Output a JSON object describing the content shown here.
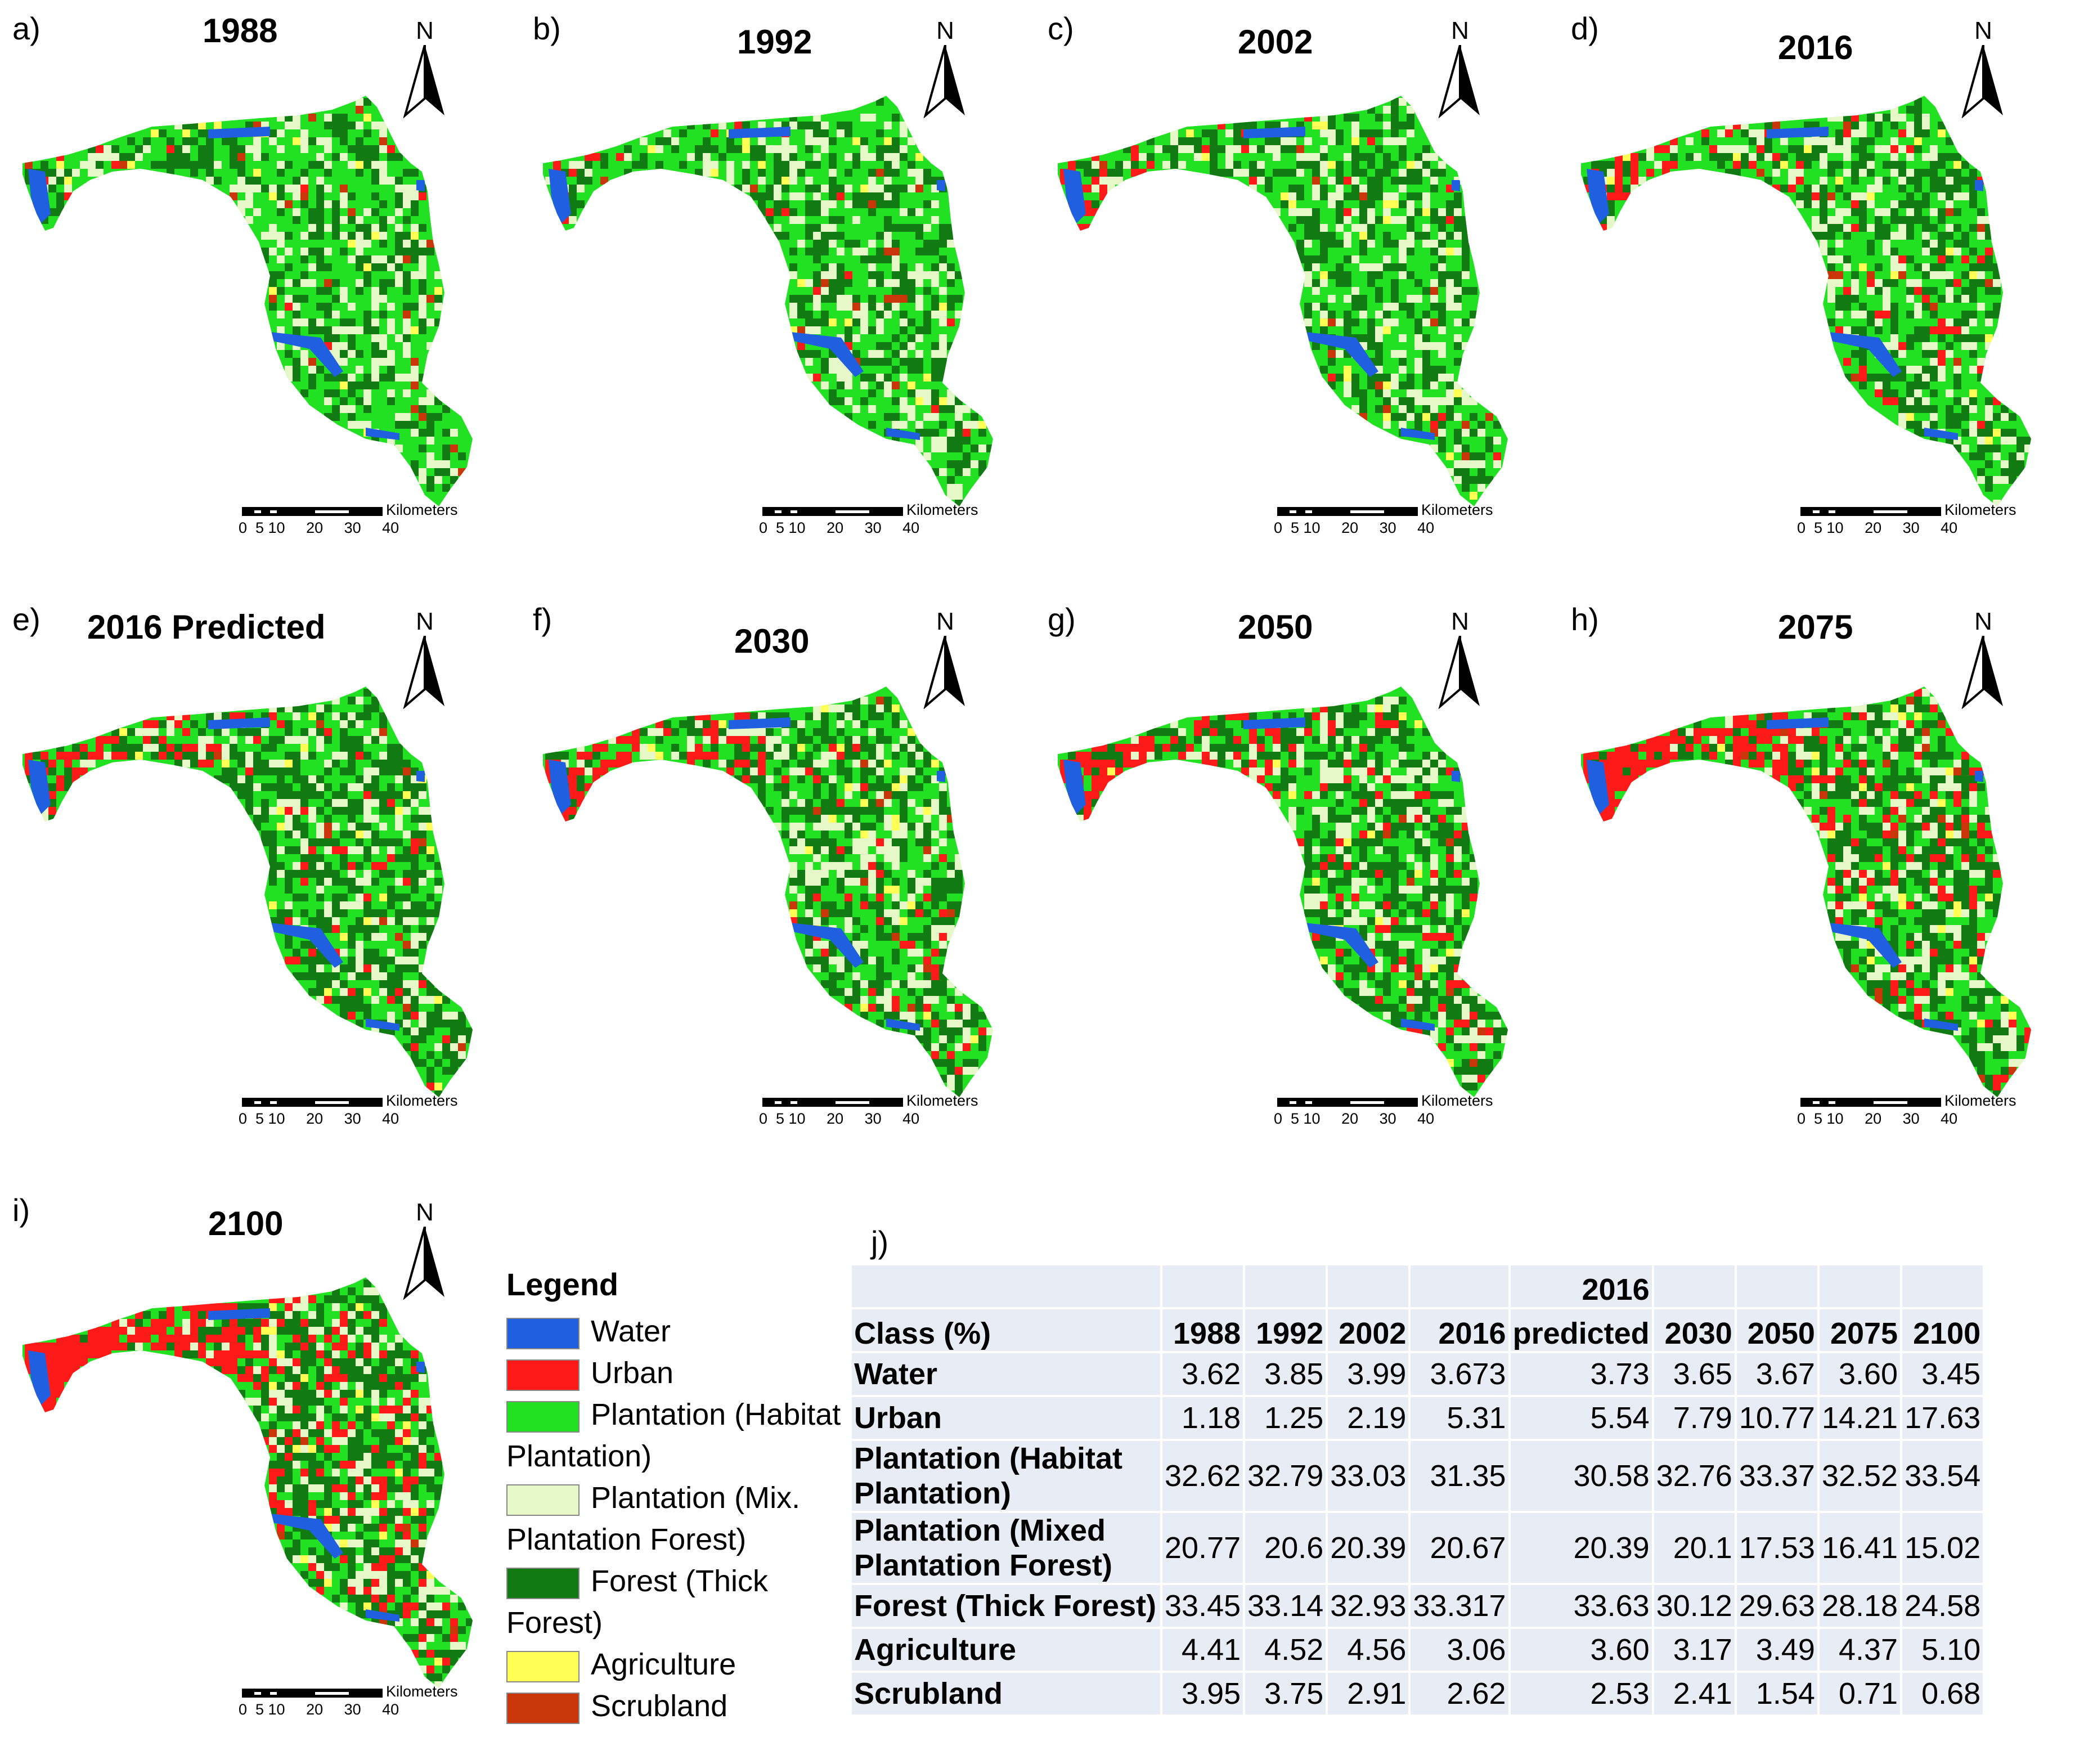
{
  "panels": [
    {
      "label": "a)",
      "title": "1988"
    },
    {
      "label": "b)",
      "title": "1992"
    },
    {
      "label": "c)",
      "title": "2002"
    },
    {
      "label": "d)",
      "title": "2016"
    },
    {
      "label": "e)",
      "title": "2016 Predicted"
    },
    {
      "label": "f)",
      "title": "2030"
    },
    {
      "label": "g)",
      "title": "2050"
    },
    {
      "label": "h)",
      "title": "2075"
    },
    {
      "label": "i)",
      "title": "2100"
    }
  ],
  "north_label": "N",
  "scale": {
    "unit": "Kilometers",
    "ticks": "0  5 10     20     30     40"
  },
  "legend": {
    "title": "Legend",
    "items": [
      {
        "label": "Water",
        "color": "#1f5fe0"
      },
      {
        "label": "Urban",
        "color": "#ff1a1a"
      },
      {
        "label": "Plantation (Habitat Plantation)",
        "color": "#22e022"
      },
      {
        "label": "Plantation (Mix. Plantation Forest)",
        "color": "#e6f7c8"
      },
      {
        "label": "Forest (Thick Forest)",
        "color": "#127a12"
      },
      {
        "label": "Agriculture",
        "color": "#ffff55"
      },
      {
        "label": "Scrubland",
        "color": "#c8360a"
      }
    ]
  },
  "class_colors": {
    "water": "#1f5fe0",
    "urban": "#ff1a1a",
    "habitat": "#22e022",
    "mixed": "#e6f7c8",
    "forest": "#127a12",
    "agri": "#ffff55",
    "scrub": "#c8360a"
  },
  "table": {
    "label": "j)",
    "header_top": [
      "",
      "",
      "",
      "",
      "",
      "2016",
      "",
      "",
      "",
      ""
    ],
    "header": [
      "Class (%)",
      "1988",
      "1992",
      "2002",
      "2016",
      "predicted",
      "2030",
      "2050",
      "2075",
      "2100"
    ],
    "rows": [
      [
        "Water",
        "3.62",
        "3.85",
        "3.99",
        "3.673",
        "3.73",
        "3.65",
        "3.67",
        "3.60",
        "3.45"
      ],
      [
        "Urban",
        "1.18",
        "1.25",
        "2.19",
        "5.31",
        "5.54",
        "7.79",
        "10.77",
        "14.21",
        "17.63"
      ],
      [
        "Plantation (Habitat Plantation)",
        "32.62",
        "32.79",
        "33.03",
        "31.35",
        "30.58",
        "32.76",
        "33.37",
        "32.52",
        "33.54"
      ],
      [
        "Plantation (Mixed Plantation Forest)",
        "20.77",
        "20.6",
        "20.39",
        "20.67",
        "20.39",
        "20.1",
        "17.53",
        "16.41",
        "15.02"
      ],
      [
        "Forest (Thick Forest)",
        "33.45",
        "33.14",
        "32.93",
        "33.317",
        "33.63",
        "30.12",
        "29.63",
        "28.18",
        "24.58"
      ],
      [
        "Agriculture",
        "4.41",
        "4.52",
        "4.56",
        "3.06",
        "3.60",
        "3.17",
        "3.49",
        "4.37",
        "5.10"
      ],
      [
        "Scrubland",
        "3.95",
        "3.75",
        "2.91",
        "2.62",
        "2.53",
        "2.41",
        "1.54",
        "0.71",
        "0.68"
      ]
    ]
  }
}
